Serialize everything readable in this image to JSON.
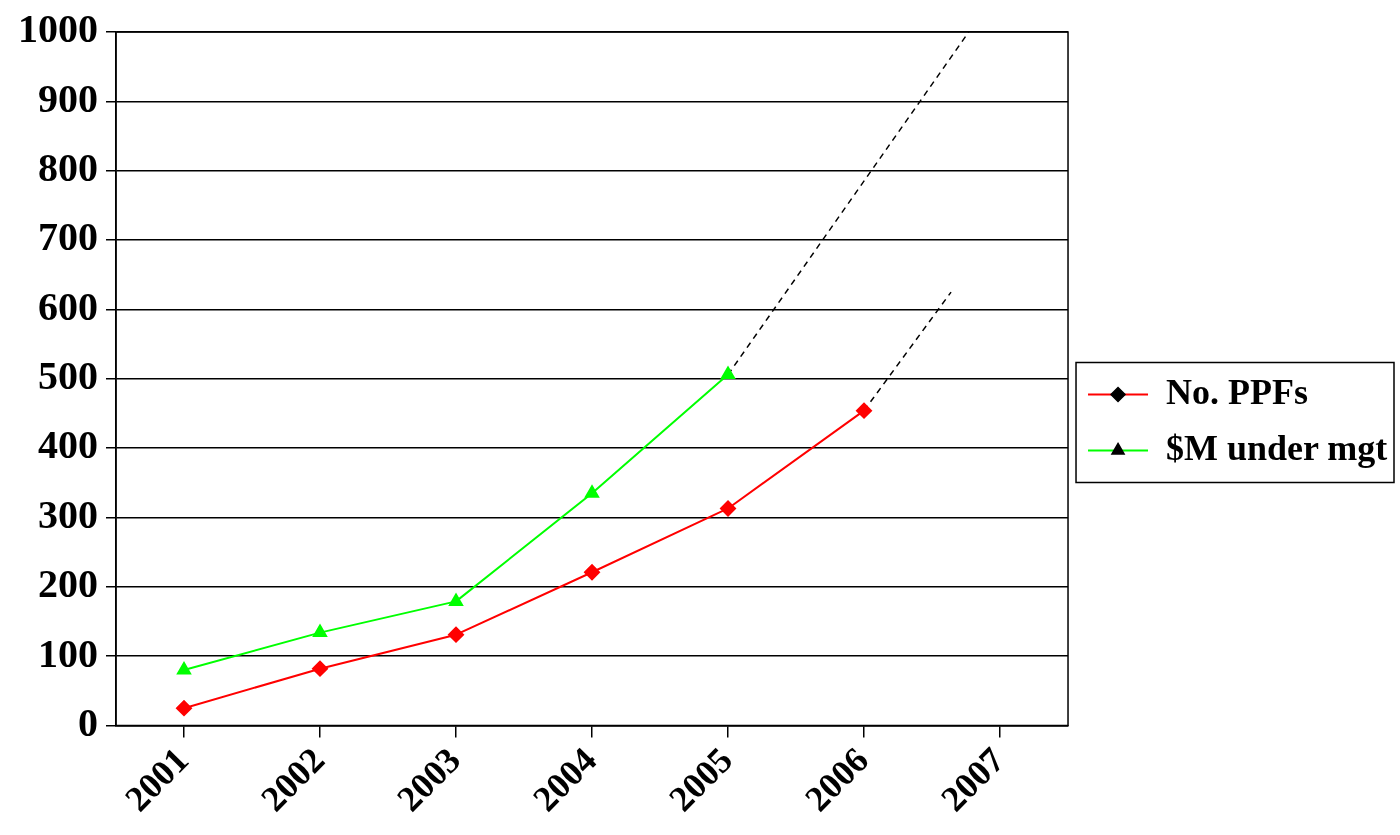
{
  "chart_data": {
    "type": "line",
    "x": [
      2001,
      2002,
      2003,
      2004,
      2005,
      2006
    ],
    "xlim": [
      2000.5,
      2007.5
    ],
    "xticks": [
      2001,
      2002,
      2003,
      2004,
      2005,
      2006,
      2007
    ],
    "ylim": [
      0,
      1000
    ],
    "yticks": [
      0,
      100,
      200,
      300,
      400,
      500,
      600,
      700,
      800,
      900,
      1000
    ],
    "grid": "y",
    "legend": "right",
    "series": [
      {
        "name": "No. PPFs",
        "color": "#ff0000",
        "marker": "diamond",
        "values": [
          25,
          82,
          131,
          221,
          313,
          454
        ]
      },
      {
        "name": "$M under mgt",
        "color": "#00ff00",
        "marker": "triangle",
        "values": [
          80,
          134,
          179,
          335,
          506,
          null
        ]
      },
      {
        "color": "#000000",
        "marker": "none",
        "line_style": "dashed",
        "x": [
          2005,
          2006.77
        ],
        "values": [
          506,
          1000
        ]
      },
      {
        "color": "#000000",
        "marker": "none",
        "line_style": "dashed",
        "x": [
          2006,
          2006.64
        ],
        "values": [
          454,
          625
        ]
      }
    ]
  }
}
